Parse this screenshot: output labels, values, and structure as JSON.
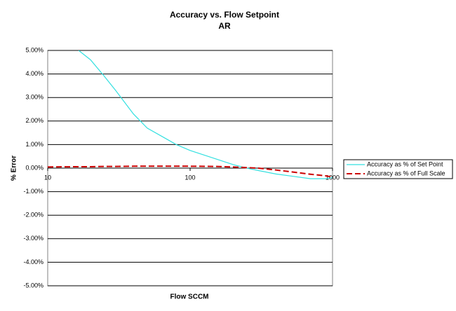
{
  "chart_data": {
    "type": "line",
    "title": "Accuracy vs. Flow Setpoint",
    "subtitle": "AR",
    "x_label": "Flow SCCM",
    "y_label": "% Error",
    "x": [
      10,
      16.5,
      20,
      25,
      30,
      40,
      50,
      70,
      80,
      100,
      150,
      200,
      250,
      300,
      400,
      500,
      700,
      900,
      1000
    ],
    "series": [
      {
        "name": "Accuracy as % of Set Point",
        "color": "#33e0e0",
        "dash": false,
        "values": [
          null,
          5.0,
          4.6,
          3.9,
          3.3,
          2.3,
          1.7,
          1.2,
          1.0,
          0.75,
          0.4,
          0.15,
          0.0,
          -0.1,
          -0.25,
          -0.33,
          -0.45,
          -0.45,
          -0.4
        ]
      },
      {
        "name": "Accuracy as % of Full Scale",
        "color": "#cc0000",
        "dash": true,
        "values": [
          0.05,
          0.06,
          0.06,
          0.07,
          0.07,
          0.08,
          0.08,
          0.08,
          0.08,
          0.08,
          0.07,
          0.05,
          0.02,
          0.0,
          -0.08,
          -0.15,
          -0.26,
          -0.33,
          -0.38
        ]
      }
    ],
    "xlim": [
      10,
      1000
    ],
    "xticks": [
      10,
      100,
      1000
    ],
    "xlog": true,
    "ylim": [
      -5,
      5
    ],
    "yticks": [
      {
        "value": -5,
        "label": "-5.00%"
      },
      {
        "value": -4,
        "label": "-4.00%"
      },
      {
        "value": -3,
        "label": "-3.00%"
      },
      {
        "value": -2,
        "label": "-2.00%"
      },
      {
        "value": -1,
        "label": "-1.00%"
      },
      {
        "value": 0,
        "label": "0.00%"
      },
      {
        "value": 1,
        "label": "1.00%"
      },
      {
        "value": 2,
        "label": "2.00%"
      },
      {
        "value": 3,
        "label": "3.00%"
      },
      {
        "value": 4,
        "label": "4.00%"
      },
      {
        "value": 5,
        "label": "5.00%"
      }
    ],
    "grid": true,
    "legend": "right"
  }
}
